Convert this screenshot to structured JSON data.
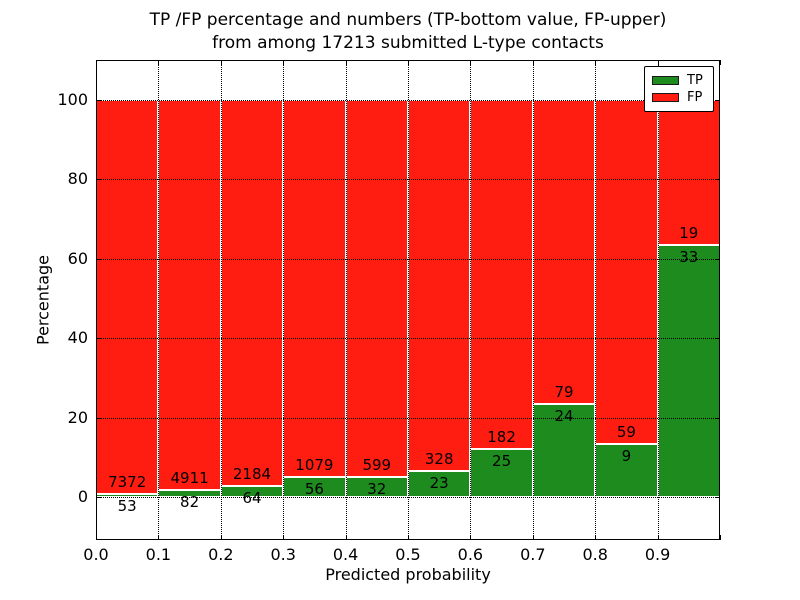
{
  "title": {
    "line1": "TP /FP percentage and numbers (TP-bottom value, FP-upper)",
    "line2": "from among 17213 submitted L-type contacts"
  },
  "axes": {
    "xlabel": "Predicted probability",
    "ylabel": "Percentage",
    "x_tick_labels": [
      "0.0",
      "0.1",
      "0.2",
      "0.3",
      "0.4",
      "0.5",
      "0.6",
      "0.7",
      "0.8",
      "0.9"
    ],
    "y_tick_labels": [
      "0",
      "20",
      "40",
      "60",
      "80",
      "100"
    ]
  },
  "legend": {
    "items": [
      {
        "label": "TP",
        "color": "#1e8b1e"
      },
      {
        "label": "FP",
        "color": "#ff1d12"
      }
    ]
  },
  "chart_data": {
    "type": "bar",
    "stacked": true,
    "title": "TP /FP percentage and numbers (TP-bottom value, FP-upper) from among 17213 submitted L-type contacts",
    "xlabel": "Predicted probability",
    "ylabel": "Percentage",
    "xlim": [
      0.0,
      1.0
    ],
    "ylim": [
      -10.8,
      110.1
    ],
    "grid": "dotted",
    "legend_position": "upper right",
    "total_contacts": 17213,
    "bin_width": 0.1,
    "bin_starts": [
      0.0,
      0.1,
      0.2,
      0.3,
      0.4,
      0.5,
      0.6,
      0.7,
      0.8,
      0.9
    ],
    "y_ticks": [
      0,
      20,
      40,
      60,
      80,
      100
    ],
    "bar_edge_color": "#ffffff",
    "series": [
      {
        "name": "TP",
        "color": "#1e8b1e",
        "counts": [
          53,
          82,
          64,
          56,
          32,
          23,
          25,
          24,
          9,
          33
        ],
        "percent": [
          0.71,
          1.64,
          2.85,
          4.93,
          5.07,
          6.55,
          12.08,
          23.3,
          13.24,
          63.46
        ]
      },
      {
        "name": "FP",
        "color": "#ff1d12",
        "counts": [
          7372,
          4911,
          2184,
          1079,
          599,
          328,
          182,
          79,
          59,
          19
        ],
        "percent": [
          99.29,
          98.36,
          97.15,
          95.07,
          94.93,
          93.45,
          87.92,
          76.7,
          86.76,
          36.54
        ]
      }
    ]
  }
}
